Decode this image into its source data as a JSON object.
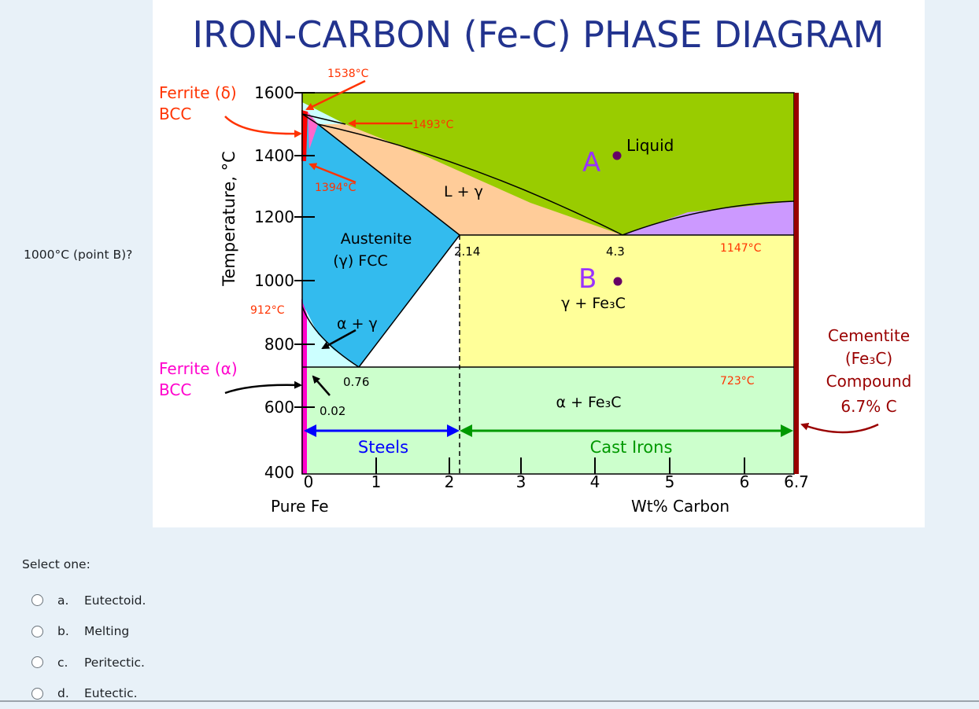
{
  "question": {
    "text": "1000°C (point B)?",
    "select_label": "Select one:",
    "options": [
      {
        "letter": "a.",
        "label": "Eutectoid."
      },
      {
        "letter": "b.",
        "label": "Melting"
      },
      {
        "letter": "c.",
        "label": "Peritectic."
      },
      {
        "letter": "d.",
        "label": "Eutectic."
      }
    ]
  },
  "diagram": {
    "title": "IRON-CARBON (Fe-C) PHASE DIAGRAM",
    "y_axis_label": "Temperature, °C",
    "x_axis_label": "Wt% Carbon",
    "x_origin_label": "Pure Fe",
    "y_ticks": [
      "1600",
      "1400",
      "1200",
      "1000",
      "800",
      "600",
      "400"
    ],
    "x_ticks": [
      "0",
      "1",
      "2",
      "3",
      "4",
      "5",
      "6",
      "6.7"
    ],
    "temps": {
      "t1538": "1538°C",
      "t1493": "1493°C",
      "t1394": "1394°C",
      "t912": "912°C",
      "t1147": "1147°C",
      "t723": "723°C"
    },
    "compositions": {
      "c214": "2.14",
      "c43": "4.3",
      "c076": "0.76",
      "c002": "0.02"
    },
    "phases": {
      "ferrite_delta": "Ferrite (δ)",
      "ferrite_delta_struct": "BCC",
      "ferrite_alpha": "Ferrite (α)",
      "ferrite_alpha_struct": "BCC",
      "austenite": "Austenite",
      "austenite_struct": "(γ) FCC",
      "liquid": "Liquid",
      "l_gamma": "L + γ",
      "alpha_gamma": "α + γ",
      "gamma_fe3c": "γ + Fe₃C",
      "alpha_fe3c": "α + Fe₃C"
    },
    "points": {
      "a": "A",
      "b": "B"
    },
    "cementite": {
      "line1": "Cementite",
      "line2": "(Fe₃C)",
      "line3": "Compound",
      "line4": "6.7% C"
    },
    "ranges": {
      "steels": "Steels",
      "cast_irons": "Cast Irons"
    },
    "colors": {
      "liquid": "#99cc00",
      "l_gamma": "#ffcc99",
      "austenite": "#33bbee",
      "gamma_fe3c": "#ffff99",
      "alpha_fe3c": "#ccffcc",
      "alpha_gamma": "#ccffff",
      "l_fe3c": "#cc99ff",
      "ferrite_alpha": "#ff00cc",
      "ferrite_delta": "#ff0000",
      "cementite": "#990000",
      "steels_arrow": "#0000ff",
      "cast_arrow": "#009900",
      "temp_label": "#ff3300",
      "point_letter": "#9933ff"
    }
  }
}
